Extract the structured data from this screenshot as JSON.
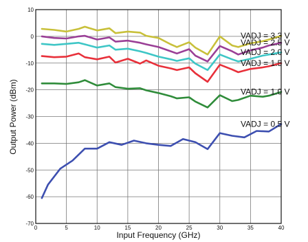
{
  "chart_data": {
    "type": "line",
    "title": "",
    "xlabel": "Input Frequency (GHz)",
    "ylabel": "Output Power (dBm)",
    "xlim": [
      0,
      40
    ],
    "ylim": [
      -70,
      10
    ],
    "x_ticks": [
      "0",
      "5",
      "10",
      "15",
      "20",
      "25",
      "30",
      "35",
      "40"
    ],
    "y_ticks": [
      "10",
      "0",
      "-10",
      "-20",
      "-30",
      "-40",
      "-50",
      "-60",
      "-70"
    ],
    "x_tick_values": [
      0,
      5,
      10,
      15,
      20,
      25,
      30,
      35,
      40
    ],
    "y_tick_values": [
      10,
      0,
      -10,
      -20,
      -30,
      -40,
      -50,
      -60,
      -70
    ],
    "grid": true,
    "series": [
      {
        "label": "VADJ = 3.3 V",
        "color": "#c8c03a",
        "x": [
          1,
          3,
          5,
          7,
          8,
          10,
          12,
          13,
          15,
          17,
          18,
          20,
          22,
          23,
          25,
          26,
          28,
          30,
          32,
          33,
          35,
          37,
          38,
          40
        ],
        "y": [
          2.8,
          2.4,
          1.8,
          2.8,
          3.6,
          2.2,
          3.0,
          1.2,
          1.8,
          1.4,
          0.2,
          -0.6,
          -3.0,
          -4.0,
          -2.2,
          -4.2,
          -6.8,
          0.0,
          -3.4,
          -4.0,
          -2.6,
          -1.8,
          -1.2,
          0.2
        ]
      },
      {
        "label": "VADJ = 2.5 V",
        "color": "#9a3f96",
        "x": [
          1,
          3,
          5,
          7,
          8,
          10,
          12,
          13,
          15,
          17,
          18,
          20,
          22,
          23,
          25,
          26,
          28,
          30,
          32,
          33,
          35,
          37,
          38,
          40
        ],
        "y": [
          0.0,
          -0.6,
          -0.8,
          0.0,
          0.2,
          -1.2,
          -0.4,
          -2.0,
          -1.6,
          -2.4,
          -3.0,
          -4.0,
          -5.6,
          -6.4,
          -4.8,
          -7.2,
          -9.4,
          -3.6,
          -5.6,
          -6.8,
          -5.2,
          -4.2,
          -3.4,
          -2.4
        ]
      },
      {
        "label": "VADJ = 2.0 V",
        "color": "#3ec6c6",
        "x": [
          1,
          3,
          5,
          7,
          8,
          10,
          12,
          13,
          15,
          17,
          18,
          20,
          22,
          23,
          25,
          26,
          28,
          30,
          32,
          33,
          35,
          37,
          38,
          40
        ],
        "y": [
          -2.8,
          -3.2,
          -2.8,
          -2.4,
          -3.0,
          -4.2,
          -3.4,
          -5.0,
          -4.6,
          -5.6,
          -6.2,
          -7.6,
          -8.6,
          -9.2,
          -8.2,
          -10.2,
          -12.6,
          -6.8,
          -8.6,
          -9.4,
          -8.4,
          -7.2,
          -6.8,
          -6.0
        ]
      },
      {
        "label": "VADJ = 1.5 V",
        "color": "#e8303a",
        "x": [
          1,
          3,
          5,
          7,
          8,
          10,
          12,
          13,
          15,
          17,
          18,
          20,
          22,
          23,
          25,
          26,
          28,
          30,
          32,
          33,
          35,
          37,
          38,
          40
        ],
        "y": [
          -7.4,
          -7.8,
          -7.6,
          -6.4,
          -7.8,
          -8.6,
          -7.6,
          -9.8,
          -8.4,
          -10.2,
          -9.0,
          -11.0,
          -12.0,
          -12.6,
          -11.6,
          -13.8,
          -17.0,
          -10.6,
          -12.4,
          -13.4,
          -12.2,
          -11.6,
          -11.2,
          -10.0
        ]
      },
      {
        "label": "VADJ = 1.0 V",
        "color": "#2f8c3a",
        "x": [
          1,
          3,
          5,
          7,
          8,
          10,
          12,
          13,
          15,
          17,
          18,
          20,
          22,
          23,
          25,
          26,
          28,
          30,
          32,
          33,
          35,
          37,
          38,
          40
        ],
        "y": [
          -17.6,
          -17.6,
          -17.8,
          -17.2,
          -16.4,
          -18.4,
          -17.6,
          -19.0,
          -19.6,
          -19.4,
          -20.2,
          -21.2,
          -22.4,
          -23.2,
          -22.8,
          -24.4,
          -26.6,
          -22.0,
          -24.2,
          -23.8,
          -22.2,
          -22.6,
          -22.2,
          -20.8
        ]
      },
      {
        "label": "VADJ = 0.5 V",
        "color": "#3d4fb0",
        "x": [
          1,
          2,
          4,
          6,
          8,
          10,
          12,
          14,
          16,
          18,
          20,
          22,
          24,
          26,
          28,
          30,
          32,
          34,
          36,
          38,
          40
        ],
        "y": [
          -60.5,
          -55.5,
          -49.5,
          -46.5,
          -42.0,
          -42.0,
          -39.6,
          -40.6,
          -39.0,
          -40.0,
          -40.6,
          -41.0,
          -38.4,
          -39.6,
          -42.2,
          -36.2,
          -37.2,
          -37.8,
          -35.4,
          -35.6,
          -32.8
        ]
      }
    ]
  }
}
